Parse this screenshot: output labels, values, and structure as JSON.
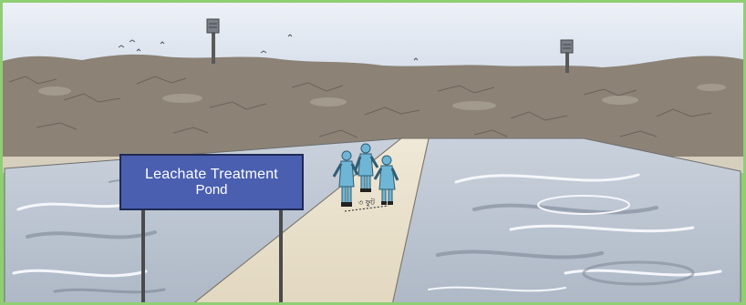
{
  "scene": {
    "sign": {
      "line1": "Leachate Treatment",
      "line2": "Pond"
    },
    "distance_label": "৩ ফুট",
    "colors": {
      "sky": "#dfe7f2",
      "landfill": "#8c8276",
      "pond_water": "#b9c3cf",
      "walkway": "#e7dfc9",
      "sign_face": "#4a5fb0",
      "ppe_suit": "#6fb6d6",
      "frame": "#8fce73"
    }
  }
}
